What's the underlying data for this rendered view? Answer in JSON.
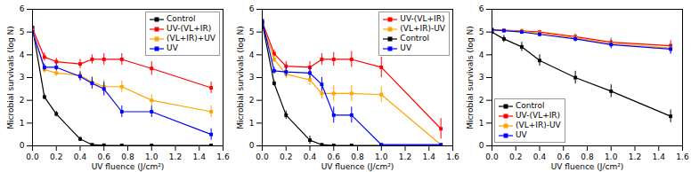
{
  "chart_data": [
    {
      "type": "line",
      "xlabel": "UV fluence (J/cm²)",
      "ylabel": "Microbial survivals (log N)",
      "xlim": [
        0.0,
        1.6
      ],
      "ylim": [
        0.0,
        6.0
      ],
      "xticks": [
        {
          "value": 0.0,
          "label": "0.0"
        },
        0.2,
        0.4,
        0.6,
        0.8,
        {
          "value": 1.0,
          "label": "1.0"
        },
        1.2,
        1.4,
        1.6
      ],
      "yticks": [
        0,
        1,
        2,
        3,
        4,
        5,
        6
      ],
      "legend": "upper right",
      "marker": "square",
      "grid": false,
      "x": [
        0.0,
        0.1,
        0.2,
        0.4,
        0.5,
        0.6,
        0.75,
        1.0,
        1.5
      ],
      "series": [
        {
          "name": "Control",
          "color": "black",
          "values": [
            5.2,
            2.15,
            1.4,
            0.3,
            0.05,
            0.03,
            0.02,
            0.02,
            0.02
          ],
          "yerr": [
            0.05,
            0.12,
            0.12,
            0.1,
            0.03,
            0.02,
            0.01,
            0.01,
            0.01
          ]
        },
        {
          "name": "UV-(VL+IR)",
          "color": "#FF0000",
          "values": [
            5.15,
            3.9,
            3.7,
            3.6,
            3.8,
            3.8,
            3.8,
            3.4,
            2.55
          ],
          "yerr": [
            0.05,
            0.18,
            0.15,
            0.2,
            0.2,
            0.25,
            0.25,
            0.3,
            0.25
          ]
        },
        {
          "name": "(VL+IR)+UV",
          "color": "#FFA500",
          "values": [
            5.05,
            3.35,
            3.2,
            3.1,
            2.8,
            2.6,
            2.6,
            2.0,
            1.5
          ],
          "yerr": [
            0.05,
            0.15,
            0.15,
            0.2,
            0.25,
            0.3,
            0.25,
            0.25,
            0.25
          ]
        },
        {
          "name": "UV",
          "color": "#0000FF",
          "values": [
            5.02,
            3.45,
            3.45,
            3.05,
            2.75,
            2.5,
            1.5,
            1.5,
            0.5
          ],
          "yerr": [
            0.05,
            0.15,
            0.15,
            0.2,
            0.25,
            0.3,
            0.25,
            0.25,
            0.25
          ]
        }
      ]
    },
    {
      "type": "line",
      "xlabel": "UV fluence (J/cm²)",
      "ylabel": "Microbial survivals (log N)",
      "xlim": [
        0.0,
        1.6
      ],
      "ylim": [
        0.0,
        6.0
      ],
      "xticks": [
        {
          "value": 0.0,
          "label": "0.0"
        },
        0.2,
        0.4,
        0.6,
        0.8,
        {
          "value": 1.0,
          "label": "1.0"
        },
        1.2,
        1.4,
        1.6
      ],
      "yticks": [
        0,
        1,
        2,
        3,
        4,
        5,
        6
      ],
      "legend": "upper right",
      "marker": "square",
      "grid": false,
      "x": [
        0.0,
        0.1,
        0.2,
        0.4,
        0.5,
        0.6,
        0.75,
        1.0,
        1.5
      ],
      "series": [
        {
          "name": "UV-(VL+IR)",
          "color": "#FF0000",
          "values": [
            5.45,
            4.05,
            3.5,
            3.45,
            3.8,
            3.8,
            3.8,
            3.45,
            0.75
          ],
          "yerr": [
            0.05,
            0.15,
            0.2,
            0.25,
            0.25,
            0.3,
            0.35,
            0.45,
            0.45
          ]
        },
        {
          "name": "(VL+IR)-UV",
          "color": "#FFA500",
          "values": [
            5.35,
            3.8,
            3.15,
            2.9,
            2.3,
            2.3,
            2.3,
            2.25,
            0.05
          ],
          "yerr": [
            0.05,
            0.15,
            0.2,
            0.25,
            0.25,
            0.35,
            0.35,
            0.35,
            0.04
          ]
        },
        {
          "name": "Control",
          "color": "black",
          "values": [
            5.4,
            2.75,
            1.35,
            0.25,
            0.05,
            0.02,
            0.02,
            0.02,
            0.02
          ],
          "yerr": [
            0.05,
            0.12,
            0.18,
            0.18,
            0.04,
            0.01,
            0.01,
            0.01,
            0.01
          ]
        },
        {
          "name": "UV",
          "color": "#0000FF",
          "values": [
            5.5,
            3.3,
            3.25,
            3.2,
            2.7,
            1.35,
            1.35,
            0.05,
            0.05
          ],
          "yerr": [
            0.05,
            0.15,
            0.2,
            0.25,
            0.3,
            0.35,
            0.35,
            0.04,
            0.04
          ]
        }
      ]
    },
    {
      "type": "line",
      "xlabel": "UV fluence (J/cm²)",
      "ylabel": "Microbial survivals (log N)",
      "xlim": [
        0.0,
        1.6
      ],
      "ylim": [
        0.0,
        6.0
      ],
      "xticks": [
        {
          "value": 0.0,
          "label": "0.0"
        },
        0.2,
        0.4,
        0.6,
        0.8,
        {
          "value": 1.0,
          "label": "1.0"
        },
        1.2,
        1.4,
        1.6
      ],
      "yticks": [
        0,
        1,
        2,
        3,
        4,
        5,
        6
      ],
      "legend": "lower left",
      "marker": "square",
      "grid": false,
      "x": [
        0.0,
        0.1,
        0.25,
        0.4,
        0.7,
        1.0,
        1.5
      ],
      "series": [
        {
          "name": "Control",
          "color": "black",
          "values": [
            5.0,
            4.7,
            4.35,
            3.75,
            3.0,
            2.4,
            1.3
          ],
          "yerr": [
            0.03,
            0.15,
            0.2,
            0.25,
            0.28,
            0.28,
            0.28
          ]
        },
        {
          "name": "UV-(VL+IR)",
          "color": "#FF0000",
          "values": [
            5.1,
            5.08,
            5.05,
            5.0,
            4.8,
            4.55,
            4.4
          ],
          "yerr": [
            0.03,
            0.05,
            0.08,
            0.08,
            0.12,
            0.18,
            0.22
          ]
        },
        {
          "name": "(VL+IR)-UV",
          "color": "#FFA500",
          "values": [
            5.1,
            5.07,
            5.03,
            4.95,
            4.75,
            4.5,
            4.3
          ],
          "yerr": [
            0.03,
            0.05,
            0.08,
            0.1,
            0.13,
            0.18,
            0.22
          ]
        },
        {
          "name": "UV",
          "color": "#0000FF",
          "values": [
            5.1,
            5.06,
            5.0,
            4.9,
            4.7,
            4.45,
            4.25
          ],
          "yerr": [
            0.03,
            0.05,
            0.08,
            0.1,
            0.13,
            0.18,
            0.22
          ]
        }
      ]
    }
  ]
}
